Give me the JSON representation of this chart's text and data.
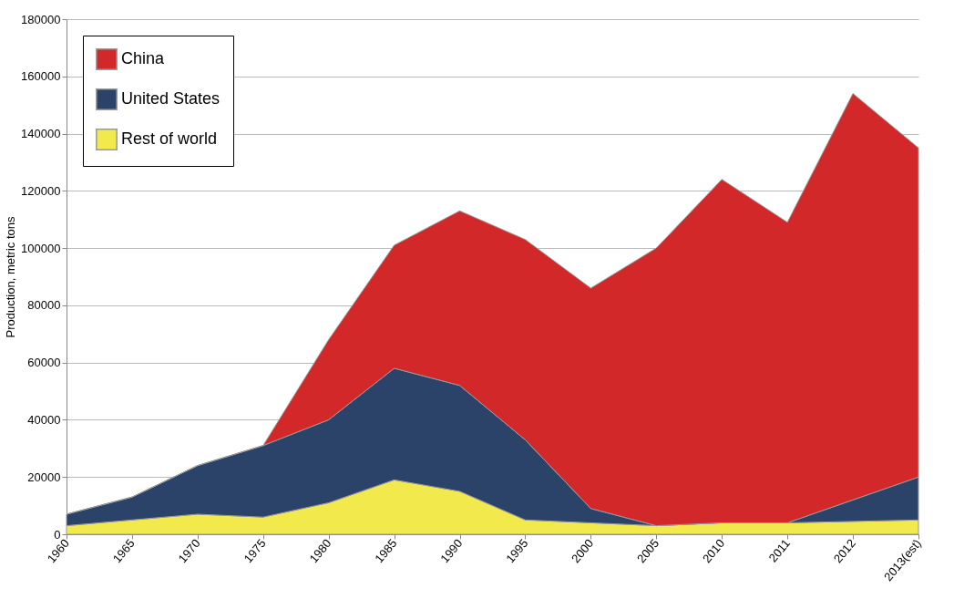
{
  "chart_data": {
    "type": "area",
    "stacked": true,
    "ylabel": "Production, metric tons",
    "categories": [
      "1960",
      "1965",
      "1970",
      "1975",
      "1980",
      "1985",
      "1990",
      "1995",
      "2000",
      "2005",
      "2010",
      "2011",
      "2012",
      "2013(est)"
    ],
    "series": [
      {
        "name": "Rest of world",
        "color": "#f2ea4c",
        "values": [
          3000,
          5000,
          7000,
          6000,
          11000,
          19000,
          15000,
          5000,
          4000,
          3000,
          4000,
          4000,
          4500,
          5000
        ]
      },
      {
        "name": "United States",
        "color": "#2c4369",
        "values": [
          4000,
          8000,
          17000,
          25000,
          29000,
          39000,
          37000,
          28000,
          5000,
          0,
          0,
          0,
          7500,
          15000
        ]
      },
      {
        "name": "China",
        "color": "#d2282a",
        "values": [
          0,
          0,
          0,
          0,
          28000,
          43000,
          61000,
          70000,
          77000,
          97000,
          120000,
          105000,
          142000,
          115000
        ]
      }
    ],
    "ylim": [
      0,
      180000
    ],
    "yticks": [
      0,
      20000,
      40000,
      60000,
      80000,
      100000,
      120000,
      140000,
      160000,
      180000
    ],
    "grid": "y",
    "legend": "top left"
  }
}
